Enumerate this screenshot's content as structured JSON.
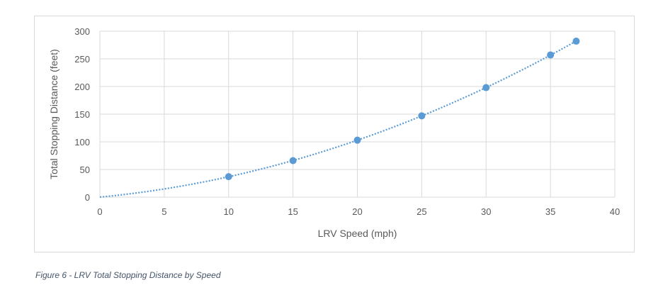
{
  "chart_data": {
    "type": "scatter",
    "title": "",
    "xlabel": "LRV Speed (mph)",
    "ylabel": "Total Stopping Distance (feet)",
    "xlim": [
      0,
      40
    ],
    "ylim": [
      0,
      300
    ],
    "xticks": [
      "0",
      "5",
      "10",
      "15",
      "20",
      "25",
      "30",
      "35",
      "40"
    ],
    "yticks": [
      "0",
      "50",
      "100",
      "150",
      "200",
      "250",
      "300"
    ],
    "grid": true,
    "legend": "none",
    "series": [
      {
        "name": "Total Stopping Distance",
        "color": "#5b9bd5",
        "x": [
          10,
          15,
          20,
          25,
          30,
          35,
          37
        ],
        "y": [
          37,
          66,
          103,
          147,
          198,
          257,
          282
        ]
      }
    ],
    "trendline": {
      "type": "polynomial",
      "style": "dotted",
      "color": "#5b9bd5",
      "x_from": 0,
      "x_to": 37
    }
  },
  "caption": "Figure 6 - LRV Total Stopping Distance by Speed"
}
